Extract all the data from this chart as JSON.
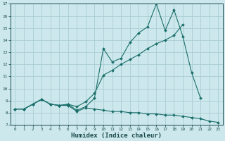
{
  "xlabel": "Humidex (Indice chaleur)",
  "bg_color": "#cce8ec",
  "grid_color": "#aacdd4",
  "line_color": "#1a6e6a",
  "x_min": -0.5,
  "x_max": 23.5,
  "y_min": 7,
  "y_max": 17,
  "line1_x": [
    0,
    1,
    2,
    3,
    4,
    5,
    6,
    7,
    8,
    9,
    10,
    11,
    12,
    13,
    14,
    15,
    16,
    17,
    18,
    19,
    20,
    21,
    22,
    23
  ],
  "line1_y": [
    8.3,
    8.3,
    8.7,
    9.1,
    8.7,
    8.6,
    8.6,
    8.1,
    8.4,
    8.3,
    8.2,
    8.1,
    8.1,
    8.0,
    8.0,
    7.9,
    7.9,
    7.8,
    7.8,
    7.7,
    7.6,
    7.5,
    7.3,
    7.2
  ],
  "line2_x": [
    0,
    1,
    2,
    3,
    4,
    5,
    6,
    7,
    8,
    9,
    10,
    11,
    12,
    13,
    14,
    15,
    16,
    17,
    18,
    19,
    20,
    21
  ],
  "line2_y": [
    8.3,
    8.3,
    8.7,
    9.1,
    8.7,
    8.6,
    8.7,
    8.2,
    8.5,
    9.2,
    13.3,
    12.2,
    12.5,
    13.8,
    14.6,
    15.1,
    17.0,
    14.8,
    16.5,
    14.3,
    11.3,
    9.2
  ],
  "line3_x": [
    0,
    1,
    2,
    3,
    4,
    5,
    6,
    7,
    8,
    9,
    10,
    11,
    12,
    13,
    14,
    15,
    16,
    17,
    18,
    19
  ],
  "line3_y": [
    8.3,
    8.3,
    8.7,
    9.1,
    8.7,
    8.6,
    8.7,
    8.5,
    8.9,
    9.6,
    11.1,
    11.5,
    12.0,
    12.4,
    12.8,
    13.3,
    13.7,
    14.0,
    14.4,
    15.3
  ]
}
